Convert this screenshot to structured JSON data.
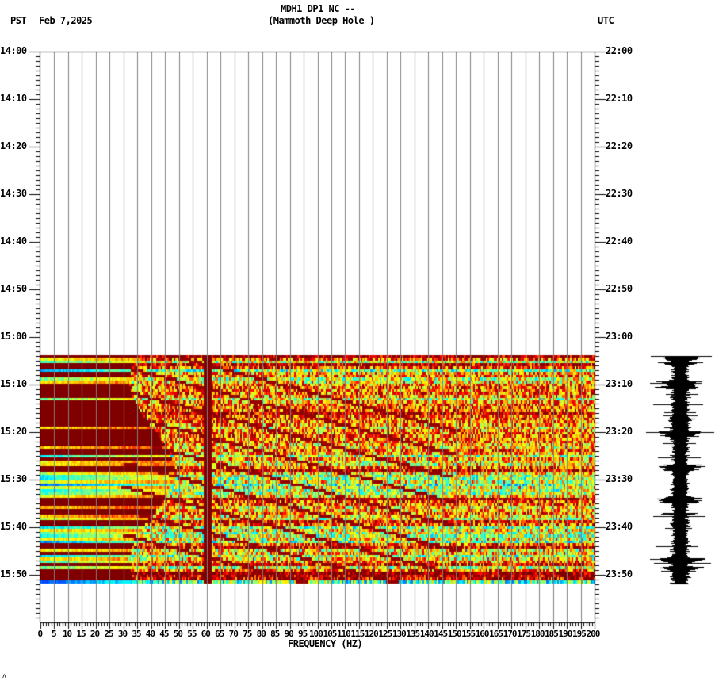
{
  "header": {
    "station_line": "MDH1 DP1 NC --",
    "site_line": "(Mammoth Deep Hole )",
    "left_timezone": "PST",
    "date": "Feb 7,2025",
    "right_timezone": "UTC"
  },
  "footer": {
    "corner_mark": "ʌ"
  },
  "colors": {
    "background": "#ffffff",
    "grid": "#808080",
    "axis": "#000000",
    "cmap_dark_red": "#800000",
    "cmap_red": "#ff0000",
    "cmap_orange": "#ff8c00",
    "cmap_yellow": "#ffff00",
    "cmap_green": "#80ff80",
    "cmap_cyan": "#00ffff",
    "cmap_blue": "#0060ff"
  },
  "chart_data": {
    "type": "heatmap",
    "title": "MDH1 DP1 NC -- (Mammoth Deep Hole )",
    "xlabel": "FREQUENCY (HZ)",
    "ylabel_left": "PST",
    "ylabel_right": "UTC",
    "date": "Feb 7,2025",
    "xlim": [
      0,
      200
    ],
    "x_ticks": [
      0,
      5,
      10,
      15,
      20,
      25,
      30,
      35,
      40,
      45,
      50,
      55,
      60,
      65,
      70,
      75,
      80,
      85,
      90,
      95,
      100,
      105,
      110,
      115,
      120,
      125,
      130,
      135,
      140,
      145,
      150,
      155,
      160,
      165,
      170,
      175,
      180,
      185,
      190,
      195,
      200
    ],
    "y_ticks_left": [
      "14:00",
      "14:10",
      "14:20",
      "14:30",
      "14:40",
      "14:50",
      "15:00",
      "15:10",
      "15:20",
      "15:30",
      "15:40",
      "15:50"
    ],
    "y_ticks_right": [
      "22:00",
      "22:10",
      "22:20",
      "22:30",
      "22:40",
      "22:50",
      "23:00",
      "23:10",
      "23:20",
      "23:30",
      "23:40",
      "23:50"
    ],
    "ylim_pst": [
      "14:00",
      "16:00"
    ],
    "data_time_range_pst": [
      "15:04",
      "15:52"
    ],
    "grid": true,
    "colormap": "jet (blue=low, dark red=high)",
    "notable_features": [
      "Persistent strong (dark red) energy band at ~60 Hz",
      "Low frequencies 0-40 Hz mostly saturated dark red with cyan/blue low-power rows",
      "Diagonal dark-red chirp streaks sweeping from ~35 Hz up toward ~140 Hz between 15:05 and 15:50",
      "Broad cyan/low-power rows near 15:29-15:33, 15:42-15:44 and 15:51"
    ],
    "low_power_rows_pst": [
      "15:05",
      "15:07",
      "15:09",
      "15:13",
      "15:27",
      "15:29-15:33",
      "15:38",
      "15:40-15:44",
      "15:46-15:48",
      "15:51"
    ],
    "seismogram": {
      "position": "right margin",
      "time_range_pst": [
        "15:04",
        "15:52"
      ],
      "bursts_pst": [
        "15:04",
        "15:07",
        "15:10",
        "15:20",
        "15:27",
        "15:34",
        "15:48"
      ]
    }
  }
}
